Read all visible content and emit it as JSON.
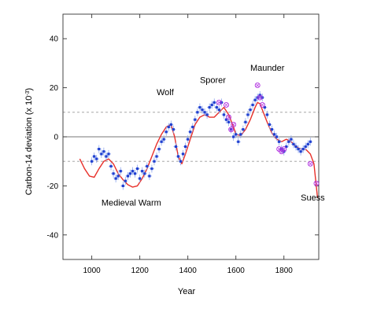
{
  "chart_data": {
    "type": "scatter",
    "xlabel": "Year",
    "ylabel": "Carbon-14 deviation (x 10",
    "ylabel_sup": "-3",
    "ylabel_close": ")",
    "xlim": [
      880,
      1945
    ],
    "ylim": [
      -50,
      50
    ],
    "xticks": [
      1000,
      1200,
      1400,
      1600,
      1800
    ],
    "yticks": [
      -40,
      -20,
      0,
      20,
      40
    ],
    "reference_lines": {
      "solid": [
        0
      ],
      "dashed": [
        10,
        -10
      ]
    },
    "annotations": [
      {
        "text": "Medieval Warm",
        "x": 1040,
        "y": -28
      },
      {
        "text": "Wolf",
        "x": 1270,
        "y": 17
      },
      {
        "text": "Sporer",
        "x": 1450,
        "y": 22
      },
      {
        "text": "Maunder",
        "x": 1660,
        "y": 27
      },
      {
        "text": "Suess",
        "x": 1870,
        "y": -26
      }
    ],
    "series": [
      {
        "type": "line",
        "color": "#e8302a",
        "x": [
          950,
          970,
          990,
          1010,
          1030,
          1050,
          1070,
          1090,
          1110,
          1130,
          1150,
          1170,
          1190,
          1210,
          1230,
          1250,
          1270,
          1290,
          1310,
          1330,
          1345,
          1360,
          1375,
          1390,
          1410,
          1430,
          1450,
          1470,
          1490,
          1510,
          1530,
          1550,
          1570,
          1590,
          1600,
          1620,
          1640,
          1660,
          1680,
          1690,
          1700,
          1710,
          1730,
          1750,
          1770,
          1790,
          1810,
          1830,
          1850,
          1870,
          1890,
          1910,
          1925,
          1940
        ],
        "y": [
          -9,
          -13,
          -16,
          -16.5,
          -13,
          -10,
          -9,
          -11,
          -15,
          -17.5,
          -19.5,
          -20.5,
          -20,
          -17,
          -13,
          -8,
          -3,
          1,
          4,
          5,
          0,
          -8,
          -11,
          -7,
          -1,
          5,
          8,
          9,
          8,
          8,
          10,
          12,
          9,
          4,
          1,
          0.5,
          3,
          7,
          12,
          14,
          13.5,
          11,
          6,
          1.5,
          -1,
          -2,
          -1,
          -2,
          -4,
          -5,
          -5,
          -7,
          -11,
          -25
        ]
      },
      {
        "type": "scatter",
        "color": "#2040d0",
        "errorbar_color": "#8da6ee",
        "x": [
          1000,
          1010,
          1020,
          1030,
          1040,
          1050,
          1060,
          1070,
          1080,
          1090,
          1100,
          1110,
          1120,
          1130,
          1140,
          1150,
          1160,
          1170,
          1180,
          1190,
          1200,
          1210,
          1220,
          1230,
          1240,
          1250,
          1260,
          1270,
          1280,
          1290,
          1300,
          1310,
          1320,
          1330,
          1340,
          1350,
          1360,
          1370,
          1380,
          1390,
          1400,
          1410,
          1420,
          1430,
          1440,
          1450,
          1460,
          1470,
          1480,
          1490,
          1500,
          1510,
          1520,
          1530,
          1540,
          1550,
          1560,
          1570,
          1580,
          1590,
          1600,
          1610,
          1620,
          1630,
          1640,
          1650,
          1660,
          1670,
          1680,
          1690,
          1700,
          1710,
          1720,
          1730,
          1740,
          1750,
          1760,
          1770,
          1780,
          1790,
          1800,
          1810,
          1820,
          1830,
          1840,
          1850,
          1860,
          1870,
          1880,
          1890,
          1900,
          1910
        ],
        "y": [
          -10,
          -8,
          -9,
          -5,
          -7,
          -6,
          -8,
          -7,
          -12,
          -15,
          -17,
          -16,
          -14,
          -20,
          -18,
          -16,
          -15,
          -14,
          -15,
          -13,
          -17,
          -14,
          -15,
          -12,
          -16,
          -13,
          -10,
          -8,
          -5,
          -2,
          -1,
          2,
          4,
          5,
          3,
          -4,
          -8,
          -10,
          -7,
          -4,
          -1,
          2,
          4,
          7,
          10,
          12,
          11,
          10,
          9,
          12,
          13,
          14,
          12,
          11,
          14,
          9,
          7,
          6,
          3,
          0,
          1,
          -2,
          1,
          3,
          6,
          9,
          11,
          13,
          15,
          16,
          17,
          16,
          12,
          9,
          5,
          3,
          1,
          0,
          -2,
          -5,
          -6,
          -4,
          -2,
          -1,
          -3,
          -4,
          -5,
          -6,
          -5,
          -4,
          -3,
          -2
        ]
      },
      {
        "type": "scatter",
        "color": "#b030e0",
        "x": [
          1530,
          1560,
          1570,
          1580,
          1590,
          1690,
          1700,
          1710,
          1780,
          1790,
          1800,
          1910,
          1935
        ],
        "y": [
          14,
          13,
          8,
          3,
          5,
          21,
          16,
          13,
          -5,
          -6,
          -5,
          -11,
          -19
        ]
      }
    ]
  }
}
